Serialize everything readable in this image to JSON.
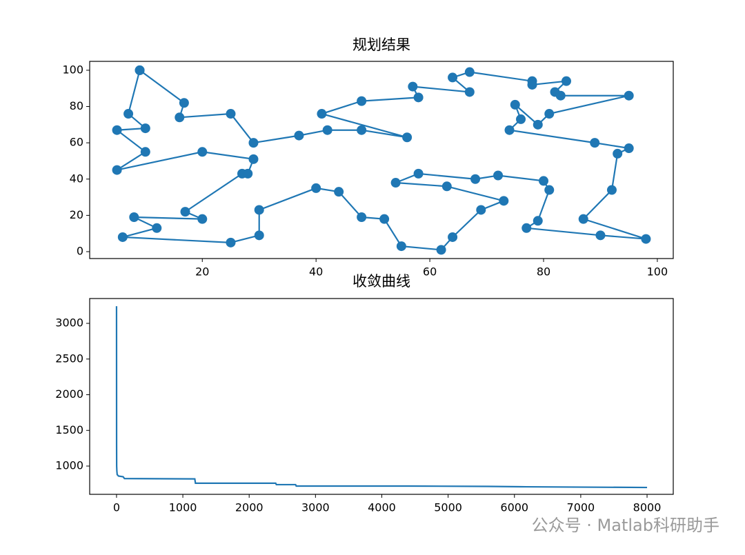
{
  "chart_data": [
    {
      "type": "line",
      "marker": "o",
      "title": "规划结果",
      "color": "#1f77b4",
      "x": [
        9,
        16.8,
        16,
        25,
        29,
        37,
        42,
        48,
        56,
        41,
        48,
        58,
        57,
        67,
        64,
        67,
        78,
        78,
        84,
        82,
        83,
        95,
        81,
        79,
        75,
        76,
        74,
        89,
        95,
        93,
        92,
        87,
        98,
        90,
        77,
        79,
        81,
        80,
        72,
        68,
        58,
        54,
        63,
        73,
        69,
        64,
        62,
        55,
        52,
        48,
        44,
        40,
        30,
        30,
        25,
        6,
        12,
        8,
        20,
        17,
        27,
        28,
        29,
        20,
        5,
        10,
        5,
        10,
        7,
        9
      ],
      "values": [
        100,
        82,
        74,
        76,
        60,
        64,
        67,
        67,
        63,
        76,
        83,
        85,
        91,
        88,
        96,
        99,
        94,
        92,
        94,
        88,
        86,
        86,
        76,
        70,
        81,
        73,
        67,
        60,
        57,
        54,
        34,
        18,
        7,
        9,
        13,
        17,
        34,
        39,
        42,
        40,
        43,
        38,
        36,
        28,
        23,
        8,
        1,
        3,
        18,
        19,
        33,
        35,
        23,
        9,
        5,
        8,
        13,
        19,
        18,
        22,
        43,
        43,
        51,
        55,
        45,
        55,
        67,
        68,
        76,
        100
      ],
      "xlim": [
        0.2,
        102.8
      ],
      "ylim": [
        -3.8,
        104.9
      ],
      "xticks": [
        20,
        40,
        60,
        80,
        100
      ],
      "yticks": [
        0,
        20,
        40,
        60,
        80,
        100
      ]
    },
    {
      "type": "line",
      "title": "收敛曲线",
      "color": "#1f77b4",
      "x": [
        0,
        1,
        2,
        5,
        10,
        30,
        100,
        120,
        1180,
        1190,
        2400,
        2410,
        2700,
        2710,
        4400,
        5600,
        6100,
        8000
      ],
      "values": [
        3240,
        1300,
        1000,
        930,
        880,
        860,
        850,
        825,
        820,
        760,
        760,
        740,
        740,
        720,
        720,
        715,
        710,
        700
      ],
      "xlim": [
        -405,
        8395
      ],
      "ylim": [
        604,
        3348
      ],
      "xticks": [
        0,
        1000,
        2000,
        3000,
        4000,
        5000,
        6000,
        7000,
        8000
      ],
      "yticks": [
        1000,
        1500,
        2000,
        2500,
        3000
      ]
    }
  ],
  "watermark": "公众号 · Matlab科研助手"
}
